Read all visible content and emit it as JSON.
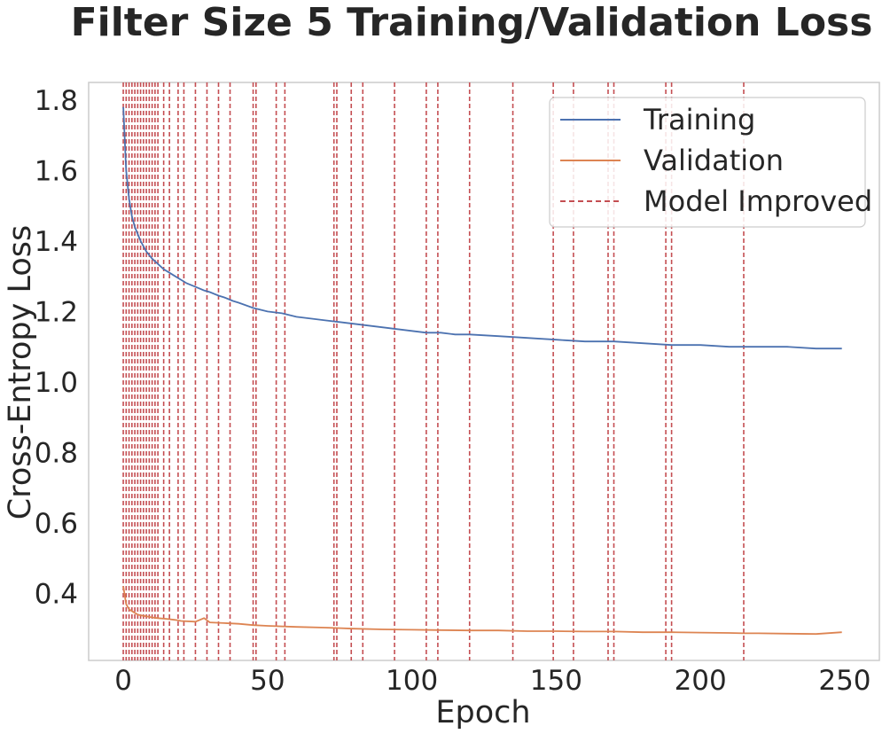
{
  "chart_data": {
    "type": "line",
    "title": "Filter Size 5 Training/Validation Loss",
    "xlabel": "Epoch",
    "ylabel": "Cross-Entropy Loss",
    "xlim": [
      -12,
      262
    ],
    "ylim": [
      0.21,
      1.85
    ],
    "xticks": [
      0,
      50,
      100,
      150,
      200,
      250
    ],
    "yticks": [
      0.4,
      0.6,
      0.8,
      1.0,
      1.2,
      1.4,
      1.6,
      1.8
    ],
    "grid": false,
    "legend_position": "top-right",
    "colors": {
      "training": "#4c72b0",
      "validation": "#dd8452",
      "improved": "#c44e52",
      "text": "#262626",
      "frame": "#cccccc"
    },
    "series": [
      {
        "name": "Training",
        "key": "training",
        "x": [
          0,
          1,
          2,
          3,
          4,
          5,
          6,
          7,
          8,
          9,
          10,
          12,
          14,
          16,
          18,
          20,
          22,
          25,
          28,
          30,
          33,
          35,
          38,
          40,
          45,
          50,
          55,
          60,
          65,
          70,
          75,
          80,
          85,
          90,
          95,
          100,
          105,
          110,
          115,
          120,
          130,
          140,
          150,
          160,
          170,
          180,
          190,
          200,
          210,
          215,
          220,
          230,
          240,
          249
        ],
        "values": [
          1.78,
          1.6,
          1.52,
          1.47,
          1.44,
          1.42,
          1.4,
          1.385,
          1.37,
          1.36,
          1.35,
          1.335,
          1.32,
          1.31,
          1.3,
          1.29,
          1.28,
          1.27,
          1.26,
          1.255,
          1.245,
          1.24,
          1.23,
          1.225,
          1.21,
          1.2,
          1.195,
          1.185,
          1.18,
          1.175,
          1.17,
          1.165,
          1.16,
          1.155,
          1.15,
          1.145,
          1.14,
          1.14,
          1.135,
          1.135,
          1.13,
          1.125,
          1.12,
          1.115,
          1.115,
          1.11,
          1.105,
          1.105,
          1.1,
          1.1,
          1.1,
          1.1,
          1.095,
          1.095
        ]
      },
      {
        "name": "Validation",
        "key": "validation",
        "x": [
          0,
          1,
          2,
          3,
          4,
          5,
          6,
          8,
          10,
          12,
          15,
          18,
          20,
          25,
          28,
          30,
          35,
          40,
          45,
          50,
          60,
          70,
          80,
          90,
          100,
          110,
          120,
          130,
          140,
          150,
          160,
          170,
          180,
          190,
          200,
          210,
          215,
          220,
          230,
          240,
          249
        ],
        "values": [
          0.42,
          0.37,
          0.355,
          0.35,
          0.345,
          0.34,
          0.338,
          0.335,
          0.332,
          0.33,
          0.328,
          0.325,
          0.322,
          0.32,
          0.33,
          0.318,
          0.316,
          0.314,
          0.31,
          0.308,
          0.305,
          0.303,
          0.3,
          0.298,
          0.297,
          0.296,
          0.295,
          0.295,
          0.293,
          0.293,
          0.292,
          0.292,
          0.29,
          0.29,
          0.289,
          0.288,
          0.287,
          0.287,
          0.286,
          0.285,
          0.29
        ]
      }
    ],
    "improved_epochs": [
      0,
      1,
      2,
      3,
      4,
      5,
      6,
      7,
      8,
      9,
      10,
      11,
      12,
      14,
      16,
      19,
      21,
      25,
      29,
      33,
      37,
      45,
      46,
      53,
      56,
      73,
      74,
      79,
      83,
      94,
      105,
      109,
      120,
      135,
      149,
      156,
      168,
      170,
      188,
      190,
      215
    ],
    "legend": [
      {
        "label": "Training",
        "key": "training",
        "style": "solid"
      },
      {
        "label": "Validation",
        "key": "validation",
        "style": "solid"
      },
      {
        "label": "Model Improved",
        "key": "improved",
        "style": "dashed"
      }
    ]
  }
}
